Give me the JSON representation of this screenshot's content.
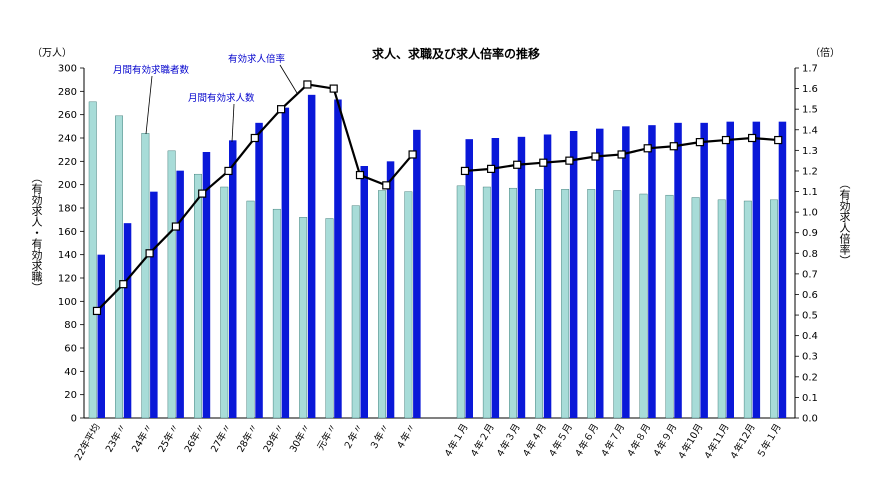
{
  "chart_data": {
    "type": "bar",
    "title": "求人、求職及び求人倍率の推移",
    "left_unit": "（万人）",
    "right_unit": "（倍）",
    "ylabel_left": "（有効求人・有効求職）",
    "ylabel_right": "（有効求人倍率）",
    "ylim_left": [
      0,
      300
    ],
    "ylim_right": [
      0.0,
      1.7
    ],
    "left_ticks": [
      "0",
      "20",
      "40",
      "60",
      "80",
      "100",
      "120",
      "140",
      "160",
      "180",
      "200",
      "220",
      "240",
      "260",
      "280",
      "300"
    ],
    "right_ticks": [
      "0.0",
      "0.1",
      "0.2",
      "0.3",
      "0.4",
      "0.5",
      "0.6",
      "0.7",
      "0.8",
      "0.9",
      "1.0",
      "1.1",
      "1.2",
      "1.3",
      "1.4",
      "1.5",
      "1.6",
      "1.7"
    ],
    "categories": [
      "22年平均",
      "23年〃",
      "24年〃",
      "25年〃",
      "26年〃",
      "27年〃",
      "28年〃",
      "29年〃",
      "30年〃",
      "元年〃",
      "２年〃",
      "３年〃",
      "４年〃",
      "４年１月",
      "４年２月",
      "４年３月",
      "４年４月",
      "４年５月",
      "４年６月",
      "４年７月",
      "４年８月",
      "４年９月",
      "４年10月",
      "４年11月",
      "４年12月",
      "５年１月"
    ],
    "series": [
      {
        "name": "月間有効求職者数",
        "color": "#a8dcd8",
        "values": [
          271,
          259,
          244,
          229,
          209,
          198,
          186,
          179,
          172,
          171,
          182,
          195,
          194,
          199,
          198,
          197,
          196,
          196,
          196,
          195,
          192,
          191,
          189,
          187,
          186,
          187
        ]
      },
      {
        "name": "月間有効求人数",
        "color": "#0a18d8",
        "values": [
          140,
          167,
          194,
          212,
          228,
          238,
          253,
          266,
          277,
          273,
          216,
          220,
          247,
          239,
          240,
          241,
          243,
          246,
          248,
          250,
          251,
          253,
          253,
          254,
          254,
          254
        ]
      },
      {
        "name": "有効求人倍率",
        "axis": "right",
        "type": "line",
        "values": [
          0.52,
          0.65,
          0.8,
          0.93,
          1.09,
          1.2,
          1.36,
          1.5,
          1.62,
          1.6,
          1.18,
          1.13,
          1.28,
          1.2,
          1.21,
          1.23,
          1.24,
          1.25,
          1.27,
          1.28,
          1.31,
          1.32,
          1.34,
          1.35,
          1.36,
          1.35
        ]
      }
    ],
    "annotations": [
      "月間有効求職者数",
      "有効求人倍率",
      "月間有効求人数"
    ],
    "grid": false,
    "legend": "none"
  }
}
